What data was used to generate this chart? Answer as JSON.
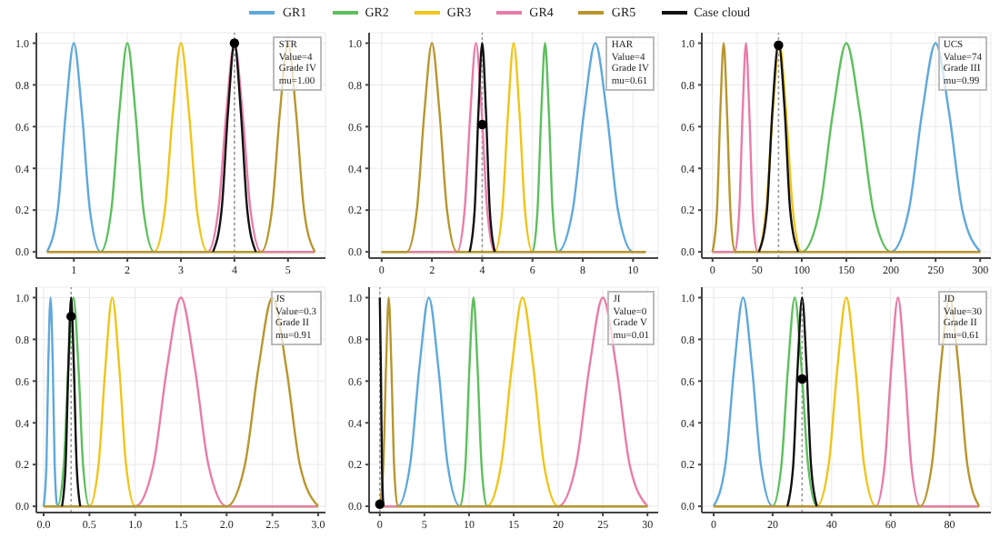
{
  "chart_data": [
    {
      "type": "line",
      "legend": "top",
      "grid": true,
      "xlim": [
        0.3,
        5.7
      ],
      "xticks": [
        1,
        2,
        3,
        4,
        5
      ],
      "ylim": [
        -0.03,
        1.05
      ],
      "yticks": [
        {
          "value": 0,
          "label": "0.0"
        },
        {
          "value": 0.2,
          "label": "0.2"
        },
        {
          "value": 0.4,
          "label": "0.4"
        },
        {
          "value": 0.6,
          "label": "0.6"
        },
        {
          "value": 0.8,
          "label": "0.8"
        },
        {
          "value": 1,
          "label": "1.0"
        }
      ],
      "ref_lines": [
        {
          "axis": "x",
          "value": 4,
          "color": "#999999",
          "line_style": "dotted"
        }
      ],
      "annotations": [
        "STR",
        "Value=4",
        "Grade IV",
        "mu=1.00"
      ],
      "series": [
        {
          "name": "GR1",
          "color": "#5fa8dc",
          "x": [
            0.5,
            0.7,
            0.85,
            1,
            1.15,
            1.3,
            1.5,
            5.5
          ],
          "values": [
            0,
            0.2,
            0.67,
            1,
            0.67,
            0.2,
            0,
            0
          ]
        },
        {
          "name": "GR2",
          "color": "#5dbf5d",
          "x": [
            0.5,
            1.5,
            1.7,
            1.85,
            2,
            2.15,
            2.3,
            2.5,
            5.5
          ],
          "values": [
            0,
            0,
            0.2,
            0.67,
            1,
            0.67,
            0.2,
            0,
            0
          ]
        },
        {
          "name": "GR3",
          "color": "#f0c419",
          "x": [
            0.5,
            2.5,
            2.7,
            2.85,
            3,
            3.15,
            3.3,
            3.5,
            5.5
          ],
          "values": [
            0,
            0,
            0.2,
            0.67,
            1,
            0.67,
            0.2,
            0,
            0
          ]
        },
        {
          "name": "GR4",
          "color": "#e97ca8",
          "x": [
            0.5,
            3.5,
            3.7,
            3.85,
            4,
            4.15,
            4.3,
            4.5,
            5.5
          ],
          "values": [
            0,
            0,
            0.2,
            0.67,
            1,
            0.67,
            0.2,
            0,
            0
          ]
        },
        {
          "name": "GR5",
          "color": "#b8962e",
          "x": [
            0.5,
            4.5,
            4.7,
            4.85,
            5,
            5.15,
            5.3,
            5.5
          ],
          "values": [
            0,
            0,
            0.2,
            0.67,
            1,
            0.67,
            0.2,
            0
          ]
        },
        {
          "name": "Case cloud",
          "color": "#111111",
          "x": [
            3.6,
            3.76,
            3.88,
            4,
            4.12,
            4.24,
            4.4
          ],
          "values": [
            0,
            0.2,
            0.67,
            1,
            0.67,
            0.2,
            0
          ]
        },
        {
          "type": "scatter",
          "marker": "circle",
          "color": "#000000",
          "x": [
            4
          ],
          "values": [
            1
          ]
        }
      ]
    },
    {
      "type": "line",
      "grid": true,
      "xlim": [
        -0.5,
        11
      ],
      "xticks": [
        0,
        2,
        4,
        6,
        8,
        10
      ],
      "ylim": [
        -0.03,
        1.05
      ],
      "yticks": [
        {
          "value": 0,
          "label": "0.0"
        },
        {
          "value": 0.2,
          "label": "0.2"
        },
        {
          "value": 0.4,
          "label": "0.4"
        },
        {
          "value": 0.6,
          "label": "0.6"
        },
        {
          "value": 0.8,
          "label": "0.8"
        },
        {
          "value": 1,
          "label": "1.0"
        }
      ],
      "ref_lines": [
        {
          "axis": "x",
          "value": 4,
          "color": "#999999",
          "line_style": "dotted"
        }
      ],
      "annotations": [
        "HAR",
        "Value=4",
        "Grade IV",
        "mu=0.61"
      ],
      "series": [
        {
          "color": "#5fa8dc",
          "x": [
            0,
            7,
            7.6,
            8.05,
            8.5,
            8.95,
            9.4,
            10,
            10.5
          ],
          "values": [
            0,
            0,
            0.2,
            0.67,
            1,
            0.67,
            0.2,
            0,
            0
          ]
        },
        {
          "color": "#5dbf5d",
          "x": [
            0,
            6,
            6.2,
            6.35,
            6.5,
            6.65,
            6.8,
            7,
            10.5
          ],
          "values": [
            0,
            0,
            0.2,
            0.67,
            1,
            0.67,
            0.2,
            0,
            0
          ]
        },
        {
          "color": "#f0c419",
          "x": [
            0,
            4.5,
            4.8,
            5.03,
            5.25,
            5.48,
            5.7,
            6,
            10.5
          ],
          "values": [
            0,
            0,
            0.2,
            0.67,
            1,
            0.67,
            0.2,
            0,
            0
          ]
        },
        {
          "color": "#e97ca8",
          "x": [
            0,
            3,
            3.3,
            3.53,
            3.75,
            3.98,
            4.2,
            4.5,
            10.5
          ],
          "values": [
            0,
            0,
            0.2,
            0.67,
            1,
            0.67,
            0.2,
            0,
            0
          ]
        },
        {
          "color": "#b8962e",
          "x": [
            0,
            1,
            1.4,
            1.7,
            2,
            2.3,
            2.6,
            3,
            10.5
          ],
          "values": [
            0,
            0,
            0.2,
            0.67,
            1,
            0.67,
            0.2,
            0,
            0
          ]
        },
        {
          "color": "#111111",
          "x": [
            3.5,
            3.7,
            3.85,
            4,
            4.15,
            4.3,
            4.5
          ],
          "values": [
            0,
            0.2,
            0.67,
            1,
            0.67,
            0.2,
            0
          ]
        },
        {
          "type": "scatter",
          "marker": "circle",
          "color": "#000000",
          "x": [
            4
          ],
          "values": [
            0.61
          ]
        }
      ]
    },
    {
      "type": "line",
      "grid": true,
      "xlim": [
        -12,
        312
      ],
      "xticks": [
        0,
        50,
        100,
        150,
        200,
        250,
        300
      ],
      "ylim": [
        -0.03,
        1.05
      ],
      "yticks": [
        {
          "value": 0,
          "label": "0.0"
        },
        {
          "value": 0.2,
          "label": "0.2"
        },
        {
          "value": 0.4,
          "label": "0.4"
        },
        {
          "value": 0.6,
          "label": "0.6"
        },
        {
          "value": 0.8,
          "label": "0.8"
        },
        {
          "value": 1,
          "label": "1.0"
        }
      ],
      "ref_lines": [
        {
          "axis": "x",
          "value": 74,
          "color": "#999999",
          "line_style": "dotted"
        }
      ],
      "annotations": [
        "UCS",
        "Value=74",
        "Grade III",
        "mu=0.99"
      ],
      "series": [
        {
          "color": "#5fa8dc",
          "x": [
            0,
            200,
            220,
            235,
            250,
            265,
            280,
            300
          ],
          "values": [
            0,
            0,
            0.2,
            0.67,
            1,
            0.67,
            0.2,
            0
          ]
        },
        {
          "color": "#5dbf5d",
          "x": [
            0,
            100,
            120,
            135,
            150,
            165,
            180,
            200,
            300
          ],
          "values": [
            0,
            0,
            0.2,
            0.67,
            1,
            0.67,
            0.2,
            0,
            0
          ]
        },
        {
          "color": "#f0c419",
          "x": [
            0,
            50,
            60,
            67.5,
            75,
            82.5,
            90,
            100,
            300
          ],
          "values": [
            0,
            0,
            0.2,
            0.67,
            1,
            0.67,
            0.2,
            0,
            0
          ]
        },
        {
          "color": "#e97ca8",
          "x": [
            0,
            25,
            30,
            33.75,
            37.5,
            41.25,
            45,
            50,
            300
          ],
          "values": [
            0,
            0,
            0.2,
            0.67,
            1,
            0.67,
            0.2,
            0,
            0
          ]
        },
        {
          "color": "#b8962e",
          "x": [
            0,
            5,
            8.75,
            12.5,
            16.25,
            20,
            25,
            300
          ],
          "values": [
            0,
            0.2,
            0.67,
            1,
            0.67,
            0.2,
            0,
            0
          ]
        },
        {
          "color": "#111111",
          "x": [
            52,
            61,
            67,
            74,
            81,
            87,
            96
          ],
          "values": [
            0,
            0.2,
            0.67,
            1,
            0.67,
            0.2,
            0
          ]
        },
        {
          "type": "scatter",
          "marker": "circle",
          "color": "#000000",
          "x": [
            74
          ],
          "values": [
            0.99
          ]
        }
      ]
    },
    {
      "type": "line",
      "grid": true,
      "xlim": [
        -0.08,
        3.08
      ],
      "xticks": [
        {
          "value": 0,
          "label": "0.0"
        },
        {
          "value": 0.5,
          "label": "0.5"
        },
        {
          "value": 1,
          "label": "1.0"
        },
        {
          "value": 1.5,
          "label": "1.5"
        },
        {
          "value": 2,
          "label": "2.0"
        },
        {
          "value": 2.5,
          "label": "2.5"
        },
        {
          "value": 3,
          "label": "3.0"
        }
      ],
      "ylim": [
        -0.03,
        1.05
      ],
      "yticks": [
        {
          "value": 0,
          "label": "0.0"
        },
        {
          "value": 0.2,
          "label": "0.2"
        },
        {
          "value": 0.4,
          "label": "0.4"
        },
        {
          "value": 0.6,
          "label": "0.6"
        },
        {
          "value": 0.8,
          "label": "0.8"
        },
        {
          "value": 1,
          "label": "1.0"
        }
      ],
      "ref_lines": [
        {
          "axis": "x",
          "value": 0.3,
          "color": "#999999",
          "line_style": "dotted"
        }
      ],
      "annotations": [
        "JS",
        "Value=0.3",
        "Grade II",
        "mu=0.91"
      ],
      "series": [
        {
          "color": "#5fa8dc",
          "x": [
            0,
            0.03,
            0.05,
            0.075,
            0.1,
            0.12,
            0.15,
            3
          ],
          "values": [
            0,
            0.2,
            0.67,
            1,
            0.67,
            0.2,
            0,
            0
          ]
        },
        {
          "color": "#5dbf5d",
          "x": [
            0,
            0.15,
            0.22,
            0.27,
            0.325,
            0.38,
            0.43,
            0.5,
            3
          ],
          "values": [
            0,
            0,
            0.2,
            0.67,
            1,
            0.67,
            0.2,
            0,
            0
          ]
        },
        {
          "color": "#f0c419",
          "x": [
            0,
            0.5,
            0.6,
            0.675,
            0.75,
            0.825,
            0.9,
            1,
            3
          ],
          "values": [
            0,
            0,
            0.2,
            0.67,
            1,
            0.67,
            0.2,
            0,
            0
          ]
        },
        {
          "color": "#e97ca8",
          "x": [
            0,
            1,
            1.2,
            1.35,
            1.5,
            1.65,
            1.8,
            2,
            3
          ],
          "values": [
            0,
            0,
            0.2,
            0.67,
            1,
            0.67,
            0.2,
            0,
            0
          ]
        },
        {
          "color": "#b8962e",
          "x": [
            0,
            2,
            2.2,
            2.35,
            2.5,
            2.65,
            2.8,
            3
          ],
          "values": [
            0,
            0,
            0.2,
            0.67,
            1,
            0.67,
            0.2,
            0
          ]
        },
        {
          "color": "#111111",
          "x": [
            0.2,
            0.24,
            0.27,
            0.3,
            0.33,
            0.36,
            0.4
          ],
          "values": [
            0,
            0.2,
            0.67,
            1,
            0.67,
            0.2,
            0
          ]
        },
        {
          "type": "scatter",
          "marker": "circle",
          "color": "#000000",
          "x": [
            0.3
          ],
          "values": [
            0.91
          ]
        }
      ]
    },
    {
      "type": "line",
      "grid": true,
      "xlim": [
        -1.2,
        31.2
      ],
      "xticks": [
        0,
        5,
        10,
        15,
        20,
        25,
        30
      ],
      "ylim": [
        -0.03,
        1.05
      ],
      "yticks": [
        {
          "value": 0,
          "label": "0.0"
        },
        {
          "value": 0.2,
          "label": "0.2"
        },
        {
          "value": 0.4,
          "label": "0.4"
        },
        {
          "value": 0.6,
          "label": "0.6"
        },
        {
          "value": 0.8,
          "label": "0.8"
        },
        {
          "value": 1,
          "label": "1.0"
        }
      ],
      "ref_lines": [
        {
          "axis": "x",
          "value": 0,
          "color": "#999999",
          "line_style": "dotted"
        }
      ],
      "annotations": [
        "JI",
        "Value=0",
        "Grade V",
        "mu=0.01"
      ],
      "series": [
        {
          "color": "#5fa8dc",
          "x": [
            0,
            2,
            3.4,
            4.45,
            5.5,
            6.55,
            7.6,
            9,
            30
          ],
          "values": [
            0,
            0,
            0.2,
            0.67,
            1,
            0.67,
            0.2,
            0,
            0
          ]
        },
        {
          "color": "#5dbf5d",
          "x": [
            0,
            9,
            9.6,
            10.05,
            10.5,
            10.95,
            11.4,
            12,
            30
          ],
          "values": [
            0,
            0,
            0.2,
            0.67,
            1,
            0.67,
            0.2,
            0,
            0
          ]
        },
        {
          "color": "#f0c419",
          "x": [
            0,
            12,
            13.6,
            14.8,
            16,
            17.2,
            18.4,
            20,
            30
          ],
          "values": [
            0,
            0,
            0.2,
            0.67,
            1,
            0.67,
            0.2,
            0,
            0
          ]
        },
        {
          "color": "#e97ca8",
          "x": [
            0,
            20,
            22,
            23.5,
            25,
            26.5,
            28,
            30
          ],
          "values": [
            0,
            0,
            0.2,
            0.67,
            1,
            0.67,
            0.2,
            0
          ]
        },
        {
          "color": "#b8962e",
          "x": [
            0,
            0.4,
            0.7,
            1,
            1.3,
            1.6,
            2,
            30
          ],
          "values": [
            0,
            0.2,
            0.67,
            1,
            0.67,
            0.2,
            0,
            0
          ]
        },
        {
          "color": "#111111",
          "x": [
            0,
            0.12,
            0.24,
            0.4
          ],
          "values": [
            1,
            0.67,
            0.2,
            0
          ]
        },
        {
          "type": "scatter",
          "marker": "circle",
          "color": "#000000",
          "x": [
            0
          ],
          "values": [
            0.01
          ]
        }
      ]
    },
    {
      "type": "line",
      "grid": true,
      "xlim": [
        -4,
        94
      ],
      "xticks": [
        0,
        20,
        40,
        60,
        80
      ],
      "ylim": [
        -0.03,
        1.05
      ],
      "yticks": [
        {
          "value": 0,
          "label": "0.0"
        },
        {
          "value": 0.2,
          "label": "0.2"
        },
        {
          "value": 0.4,
          "label": "0.4"
        },
        {
          "value": 0.6,
          "label": "0.6"
        },
        {
          "value": 0.8,
          "label": "0.8"
        },
        {
          "value": 1,
          "label": "1.0"
        }
      ],
      "ref_lines": [
        {
          "axis": "x",
          "value": 30,
          "color": "#999999",
          "line_style": "dotted"
        }
      ],
      "annotations": [
        "JD",
        "Value=30",
        "Grade II",
        "mu=0.61"
      ],
      "series": [
        {
          "color": "#5fa8dc",
          "x": [
            0,
            4,
            7,
            10,
            13,
            16,
            20,
            90
          ],
          "values": [
            0,
            0.2,
            0.67,
            1,
            0.67,
            0.2,
            0,
            0
          ]
        },
        {
          "color": "#5dbf5d",
          "x": [
            0,
            20,
            23,
            25.25,
            27.5,
            29.75,
            32,
            35,
            90
          ],
          "values": [
            0,
            0,
            0.2,
            0.67,
            1,
            0.67,
            0.2,
            0,
            0
          ]
        },
        {
          "color": "#f0c419",
          "x": [
            0,
            35,
            39,
            42,
            45,
            48,
            51,
            55,
            90
          ],
          "values": [
            0,
            0,
            0.2,
            0.67,
            1,
            0.67,
            0.2,
            0,
            0
          ]
        },
        {
          "color": "#e97ca8",
          "x": [
            0,
            55,
            58,
            60.25,
            62.5,
            64.75,
            67,
            70,
            90
          ],
          "values": [
            0,
            0,
            0.2,
            0.67,
            1,
            0.67,
            0.2,
            0,
            0
          ]
        },
        {
          "color": "#b8962e",
          "x": [
            0,
            70,
            74,
            77,
            80,
            83,
            86,
            90
          ],
          "values": [
            0,
            0,
            0.2,
            0.67,
            1,
            0.67,
            0.2,
            0
          ]
        },
        {
          "color": "#111111",
          "x": [
            25,
            27,
            28.5,
            30,
            31.5,
            33,
            35
          ],
          "values": [
            0,
            0.2,
            0.67,
            1,
            0.67,
            0.2,
            0
          ]
        },
        {
          "type": "scatter",
          "marker": "circle",
          "color": "#000000",
          "x": [
            30
          ],
          "values": [
            0.61
          ]
        }
      ]
    }
  ]
}
